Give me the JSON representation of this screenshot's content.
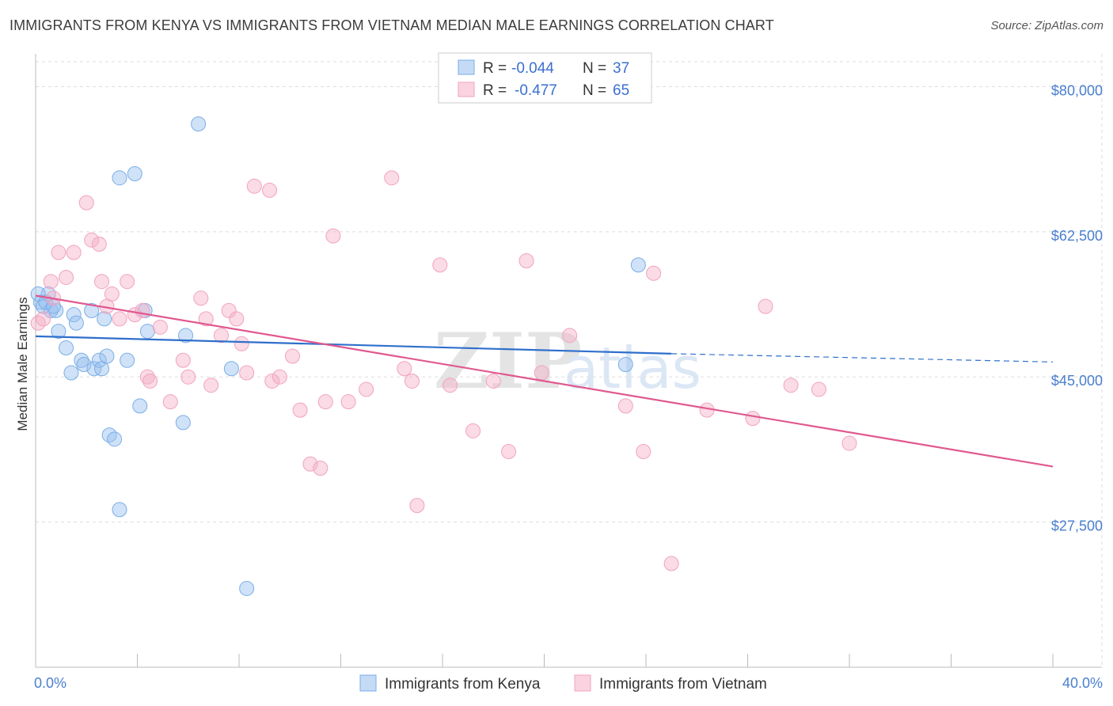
{
  "title": "IMMIGRANTS FROM KENYA VS IMMIGRANTS FROM VIETNAM MEDIAN MALE EARNINGS CORRELATION CHART",
  "source": "Source: ZipAtlas.com",
  "watermark": {
    "zip": "ZIP",
    "atlas": "atlas"
  },
  "colors": {
    "kenya": "#7aaee8",
    "kenya_line": "#2f6fcc",
    "vietnam": "#f2a3bd",
    "vietnam_line": "#e0588f",
    "tick": "#4a7fcf"
  },
  "legend": {
    "r_label": "R =",
    "n_label": "N =",
    "kenya": {
      "r": "-0.044",
      "n": "37"
    },
    "vietnam": {
      "r": "-0.477",
      "n": "65"
    }
  },
  "chart_data": {
    "type": "scatter",
    "title": "IMMIGRANTS FROM KENYA VS IMMIGRANTS FROM VIETNAM MEDIAN MALE EARNINGS CORRELATION CHART",
    "xlabel": "",
    "ylabel": "Median Male Earnings",
    "xlim": [
      0,
      40
    ],
    "ylim": [
      10000,
      83000
    ],
    "x_tick_labels": [
      "0.0%",
      "40.0%"
    ],
    "y_ticks": [
      27500,
      45000,
      62500,
      80000
    ],
    "y_tick_labels": [
      "$27,500",
      "$45,000",
      "$62,500",
      "$80,000"
    ],
    "grid": true,
    "series": [
      {
        "name": "Immigrants from Kenya",
        "points": [
          [
            0.2,
            54000
          ],
          [
            0.3,
            53500
          ],
          [
            0.5,
            55000
          ],
          [
            0.6,
            53000
          ],
          [
            0.8,
            53000
          ],
          [
            0.9,
            50500
          ],
          [
            1.2,
            48500
          ],
          [
            1.4,
            45500
          ],
          [
            1.5,
            52500
          ],
          [
            1.6,
            51500
          ],
          [
            1.8,
            47000
          ],
          [
            1.9,
            46500
          ],
          [
            2.2,
            53000
          ],
          [
            2.3,
            46000
          ],
          [
            2.5,
            47000
          ],
          [
            2.6,
            46000
          ],
          [
            2.7,
            52000
          ],
          [
            2.8,
            47500
          ],
          [
            2.9,
            38000
          ],
          [
            3.1,
            37500
          ],
          [
            3.3,
            29000
          ],
          [
            3.6,
            47000
          ],
          [
            3.9,
            69500
          ],
          [
            4.1,
            41500
          ],
          [
            4.3,
            53000
          ],
          [
            4.4,
            50500
          ],
          [
            5.8,
            39500
          ],
          [
            5.9,
            50000
          ],
          [
            6.4,
            75500
          ],
          [
            7.7,
            46000
          ],
          [
            8.3,
            19500
          ],
          [
            23.7,
            58500
          ],
          [
            3.3,
            69000
          ],
          [
            0.1,
            55000
          ],
          [
            0.4,
            54000
          ],
          [
            23.2,
            46500
          ],
          [
            0.7,
            53500
          ]
        ],
        "trend": {
          "x0": 0,
          "y0": 49900,
          "x1": 25,
          "y1": 47800,
          "dashed_to_x": 40,
          "dashed_to_y": 46800
        }
      },
      {
        "name": "Immigrants from Vietnam",
        "points": [
          [
            0.1,
            51500
          ],
          [
            0.3,
            52000
          ],
          [
            0.6,
            56500
          ],
          [
            0.7,
            54500
          ],
          [
            0.9,
            60000
          ],
          [
            1.2,
            57000
          ],
          [
            1.5,
            60000
          ],
          [
            2.0,
            66000
          ],
          [
            2.2,
            61500
          ],
          [
            2.5,
            61000
          ],
          [
            2.6,
            56500
          ],
          [
            2.8,
            53500
          ],
          [
            3.0,
            55000
          ],
          [
            3.3,
            52000
          ],
          [
            3.6,
            56500
          ],
          [
            3.9,
            52500
          ],
          [
            4.2,
            53000
          ],
          [
            4.4,
            45000
          ],
          [
            4.5,
            44500
          ],
          [
            4.9,
            51000
          ],
          [
            5.3,
            42000
          ],
          [
            5.8,
            47000
          ],
          [
            6.0,
            45000
          ],
          [
            6.5,
            54500
          ],
          [
            6.7,
            52000
          ],
          [
            6.9,
            44000
          ],
          [
            7.3,
            50000
          ],
          [
            7.6,
            53000
          ],
          [
            7.9,
            52000
          ],
          [
            8.1,
            49000
          ],
          [
            8.3,
            45500
          ],
          [
            8.6,
            68000
          ],
          [
            9.2,
            67500
          ],
          [
            9.3,
            44500
          ],
          [
            9.6,
            45000
          ],
          [
            10.1,
            47500
          ],
          [
            10.4,
            41000
          ],
          [
            10.8,
            34500
          ],
          [
            11.2,
            34000
          ],
          [
            11.4,
            42000
          ],
          [
            11.7,
            62000
          ],
          [
            12.3,
            42000
          ],
          [
            13.0,
            43500
          ],
          [
            14.0,
            69000
          ],
          [
            14.5,
            46000
          ],
          [
            14.8,
            44500
          ],
          [
            15.0,
            29500
          ],
          [
            15.9,
            58500
          ],
          [
            16.3,
            44000
          ],
          [
            17.2,
            38500
          ],
          [
            18.0,
            44500
          ],
          [
            18.6,
            36000
          ],
          [
            19.3,
            59000
          ],
          [
            19.9,
            45500
          ],
          [
            21.0,
            50000
          ],
          [
            23.2,
            41500
          ],
          [
            23.9,
            36000
          ],
          [
            24.3,
            57500
          ],
          [
            25.0,
            22500
          ],
          [
            26.4,
            41000
          ],
          [
            28.2,
            40000
          ],
          [
            28.7,
            53500
          ],
          [
            29.7,
            44000
          ],
          [
            30.8,
            43500
          ],
          [
            32.0,
            37000
          ]
        ],
        "trend": {
          "x0": 0,
          "y0": 54800,
          "x1": 40,
          "y1": 34200
        }
      }
    ]
  },
  "bottom_legend": {
    "kenya": "Immigrants from Kenya",
    "vietnam": "Immigrants from Vietnam"
  }
}
